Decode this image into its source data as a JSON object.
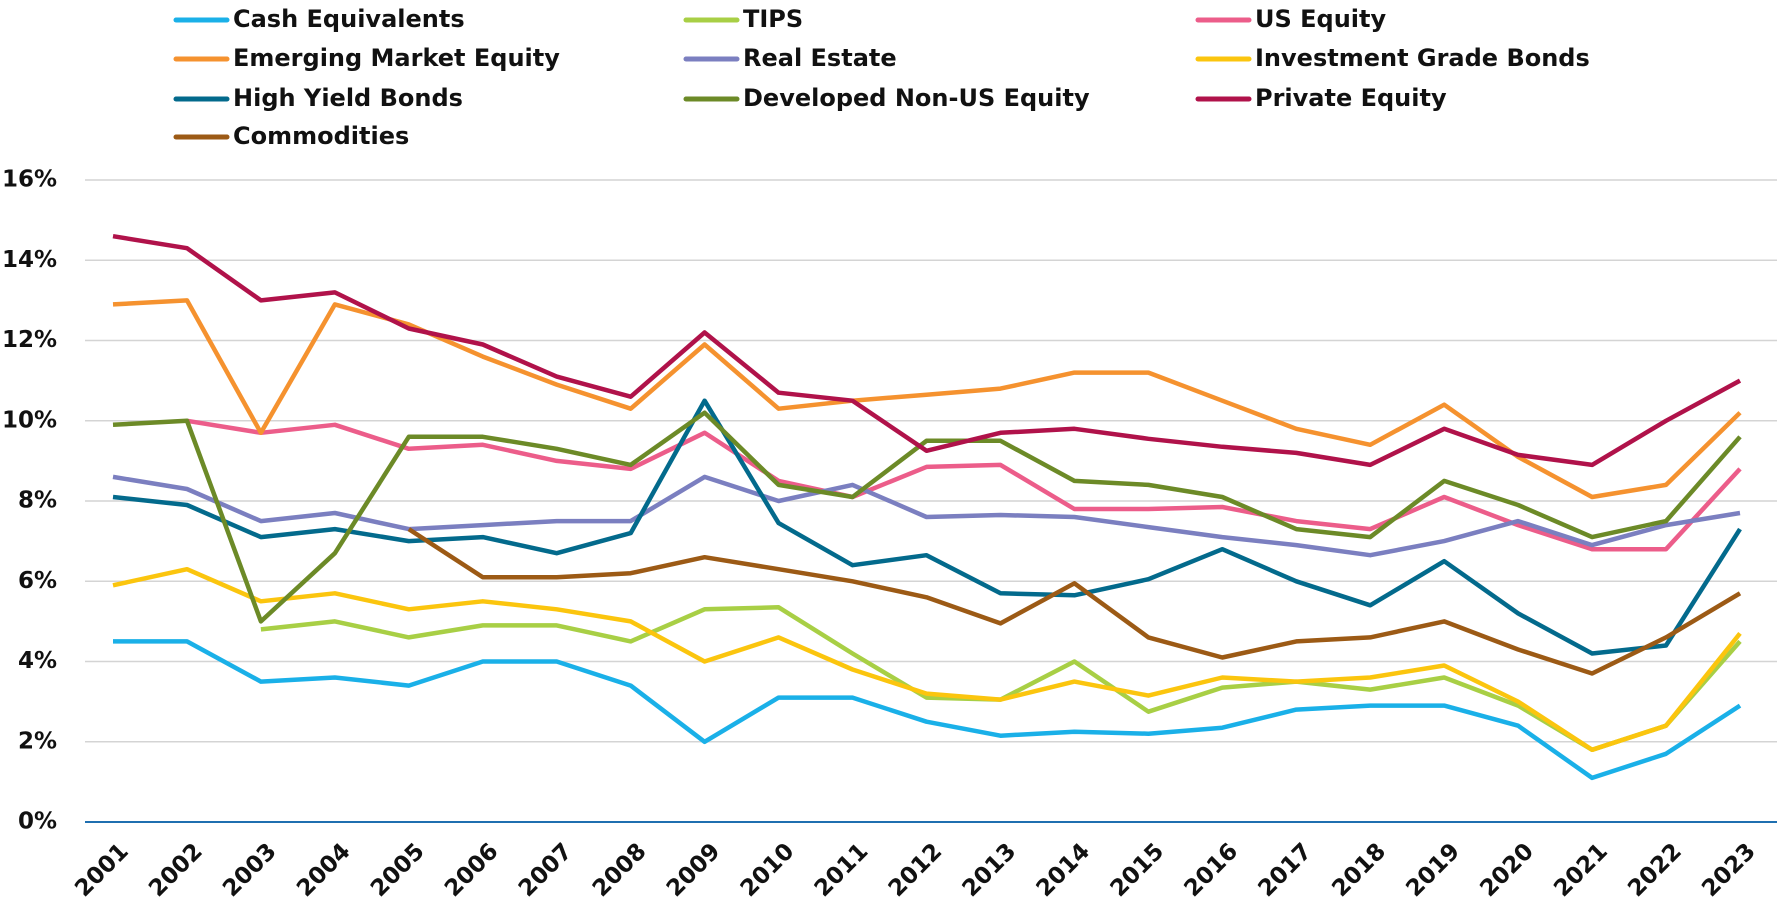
{
  "chart_data": {
    "type": "line",
    "categories": [
      "2001",
      "2002",
      "2003",
      "2004",
      "2005",
      "2006",
      "2007",
      "2008",
      "2009",
      "2010",
      "2011",
      "2012",
      "2013",
      "2014",
      "2015",
      "2016",
      "2017",
      "2018",
      "2019",
      "2020",
      "2021",
      "2022",
      "2023"
    ],
    "series": [
      {
        "name": "Cash Equivalents",
        "color": "#1ab0e8",
        "values": [
          4.5,
          4.5,
          3.5,
          3.6,
          3.4,
          4.0,
          4.0,
          3.4,
          2.0,
          3.1,
          3.1,
          2.5,
          2.15,
          2.25,
          2.2,
          2.35,
          2.8,
          2.9,
          2.9,
          2.4,
          1.1,
          1.7,
          2.9
        ]
      },
      {
        "name": "TIPS",
        "color": "#a8cf45",
        "values": [
          null,
          null,
          4.8,
          5.0,
          4.6,
          4.9,
          4.9,
          4.5,
          5.3,
          5.35,
          4.2,
          3.1,
          3.05,
          4.0,
          2.75,
          3.35,
          3.5,
          3.3,
          3.6,
          2.9,
          1.8,
          2.4,
          4.5
        ]
      },
      {
        "name": "US Equity",
        "color": "#ec5d8a",
        "values": [
          null,
          10.0,
          9.7,
          9.9,
          9.3,
          9.4,
          9.0,
          8.8,
          9.7,
          8.5,
          8.1,
          8.85,
          8.9,
          7.8,
          7.8,
          7.85,
          7.5,
          7.3,
          8.1,
          7.4,
          6.8,
          6.8,
          8.8
        ]
      },
      {
        "name": "Emerging Market Equity",
        "color": "#f5922f",
        "values": [
          12.9,
          13.0,
          9.7,
          12.9,
          12.4,
          11.6,
          10.9,
          10.3,
          11.9,
          10.3,
          10.5,
          10.65,
          10.8,
          11.2,
          11.2,
          10.5,
          9.8,
          9.4,
          10.4,
          9.1,
          8.1,
          8.4,
          10.2
        ]
      },
      {
        "name": "Real Estate",
        "color": "#7b7fc0",
        "values": [
          8.6,
          8.3,
          7.5,
          7.7,
          7.3,
          7.4,
          7.5,
          7.5,
          8.6,
          8.0,
          8.4,
          7.6,
          7.65,
          7.6,
          7.35,
          7.1,
          6.9,
          6.65,
          7.0,
          7.5,
          6.9,
          7.4,
          7.7
        ]
      },
      {
        "name": "Investment Grade Bonds",
        "color": "#fbc50e",
        "values": [
          5.9,
          6.3,
          5.5,
          5.7,
          5.3,
          5.5,
          5.3,
          5.0,
          4.0,
          4.6,
          3.8,
          3.2,
          3.05,
          3.5,
          3.15,
          3.6,
          3.5,
          3.6,
          3.9,
          3.0,
          1.8,
          2.4,
          4.7
        ]
      },
      {
        "name": "High Yield Bonds",
        "color": "#036a8c",
        "values": [
          8.1,
          7.9,
          7.1,
          7.3,
          7.0,
          7.1,
          6.7,
          7.2,
          10.5,
          7.45,
          6.4,
          6.65,
          5.7,
          5.65,
          6.05,
          6.8,
          6.0,
          5.4,
          6.5,
          5.2,
          4.2,
          4.4,
          7.3
        ]
      },
      {
        "name": "Developed Non-US Equity",
        "color": "#6c8a27",
        "values": [
          9.9,
          10.0,
          5.0,
          6.7,
          9.6,
          9.6,
          9.3,
          8.9,
          10.2,
          8.4,
          8.1,
          9.5,
          9.5,
          8.5,
          8.4,
          8.1,
          7.3,
          7.1,
          8.5,
          7.9,
          7.1,
          7.5,
          9.6
        ]
      },
      {
        "name": "Private Equity",
        "color": "#b0124a",
        "values": [
          14.6,
          14.3,
          13.0,
          13.2,
          12.3,
          11.9,
          11.1,
          10.6,
          12.2,
          10.7,
          10.5,
          9.25,
          9.7,
          9.8,
          9.55,
          9.35,
          9.2,
          8.9,
          9.8,
          9.15,
          8.9,
          10.0,
          11.0
        ]
      },
      {
        "name": "Commodities",
        "color": "#9c5a15",
        "values": [
          null,
          null,
          null,
          null,
          7.3,
          6.1,
          6.1,
          6.2,
          6.6,
          6.3,
          6.0,
          5.6,
          4.95,
          5.95,
          4.6,
          4.1,
          4.5,
          4.6,
          5.0,
          4.3,
          3.7,
          4.6,
          5.7
        ]
      }
    ],
    "ylim": [
      0,
      16
    ],
    "yticks": [
      {
        "value": 0,
        "label": "0%"
      },
      {
        "value": 2,
        "label": "2%"
      },
      {
        "value": 4,
        "label": "4%"
      },
      {
        "value": 6,
        "label": "6%"
      },
      {
        "value": 8,
        "label": "8%"
      },
      {
        "value": 10,
        "label": "10%"
      },
      {
        "value": 12,
        "label": "12%"
      },
      {
        "value": 14,
        "label": "14%"
      },
      {
        "value": 16,
        "label": "16%"
      }
    ],
    "grid": true,
    "legend": "top"
  }
}
